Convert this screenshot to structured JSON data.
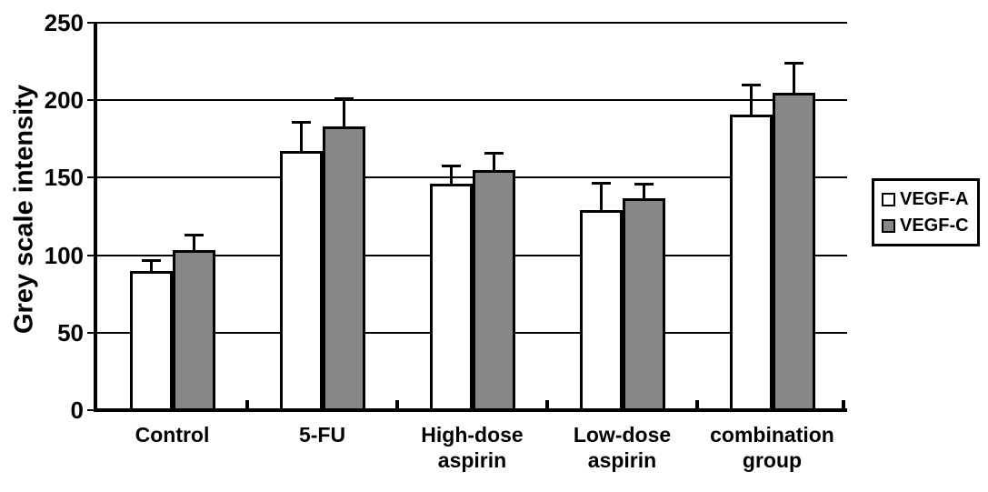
{
  "chart_data": {
    "type": "bar",
    "title": "",
    "ylabel": "Grey scale intensity",
    "xlabel": "",
    "ylim": [
      0,
      250
    ],
    "yticks": [
      0,
      50,
      100,
      150,
      200,
      250
    ],
    "grid": "horizontal gridlines every 50 units",
    "legend_position": "right outside plot",
    "categories": [
      "Control",
      "5-FU",
      "High-dose\naspirin",
      "Low-dose\naspirin",
      "combination\ngroup"
    ],
    "series": [
      {
        "name": "VEGF-A",
        "fill": "#ffffff",
        "values": [
          90,
          167,
          146,
          129,
          191
        ],
        "errors_upper": [
          7,
          19,
          12,
          18,
          19
        ]
      },
      {
        "name": "VEGF-C",
        "fill": "#878787",
        "values": [
          103,
          183,
          155,
          137,
          205
        ],
        "errors_upper": [
          10,
          18,
          11,
          9,
          19
        ]
      }
    ],
    "colors": {
      "axis": "#000000",
      "bar_border": "#000000",
      "background": "#ffffff"
    }
  }
}
